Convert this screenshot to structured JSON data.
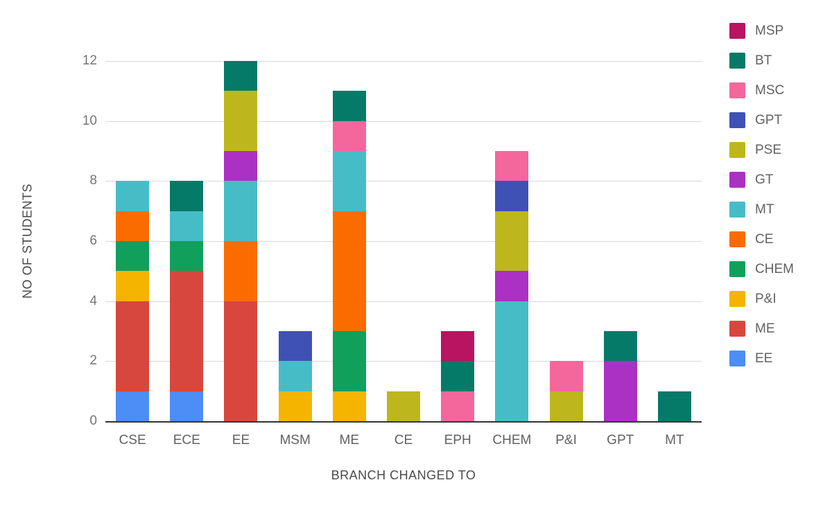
{
  "chart_data": {
    "type": "bar",
    "stacked": true,
    "title": "",
    "xlabel": "BRANCH CHANGED TO",
    "ylabel": "NO OF STUDENTS",
    "categories": [
      "CSE",
      "ECE",
      "EE",
      "MSM",
      "ME",
      "CE",
      "EPH",
      "CHEM",
      "P&I",
      "GPT",
      "MT"
    ],
    "series": [
      {
        "name": "EE",
        "color": "#4c8df6",
        "values": [
          1,
          1,
          0,
          0,
          0,
          0,
          0,
          0,
          0,
          0,
          0
        ]
      },
      {
        "name": "ME",
        "color": "#d8473d",
        "values": [
          3,
          4,
          4,
          0,
          0,
          0,
          0,
          0,
          0,
          0,
          0
        ]
      },
      {
        "name": "P&I",
        "color": "#f4b400",
        "values": [
          1,
          0,
          0,
          1,
          1,
          0,
          0,
          0,
          0,
          0,
          0
        ]
      },
      {
        "name": "CHEM",
        "color": "#10a05c",
        "values": [
          1,
          1,
          0,
          0,
          2,
          0,
          0,
          0,
          0,
          0,
          0
        ]
      },
      {
        "name": "CE",
        "color": "#fa6c00",
        "values": [
          1,
          0,
          2,
          0,
          4,
          0,
          0,
          0,
          0,
          0,
          0
        ]
      },
      {
        "name": "MT",
        "color": "#46bdc6",
        "values": [
          1,
          1,
          2,
          1,
          2,
          0,
          0,
          4,
          0,
          0,
          0
        ]
      },
      {
        "name": "GT",
        "color": "#ab30c4",
        "values": [
          0,
          0,
          1,
          0,
          0,
          0,
          0,
          1,
          0,
          2,
          0
        ]
      },
      {
        "name": "PSE",
        "color": "#bdb71d",
        "values": [
          0,
          0,
          2,
          0,
          0,
          1,
          0,
          2,
          1,
          0,
          0
        ]
      },
      {
        "name": "GPT",
        "color": "#3f51b5",
        "values": [
          0,
          0,
          0,
          1,
          0,
          0,
          0,
          1,
          0,
          0,
          0
        ]
      },
      {
        "name": "MSC",
        "color": "#f4679d",
        "values": [
          0,
          0,
          0,
          0,
          1,
          0,
          1,
          1,
          1,
          0,
          0
        ]
      },
      {
        "name": "BT",
        "color": "#067a68",
        "values": [
          0,
          1,
          1,
          0,
          1,
          0,
          1,
          0,
          0,
          1,
          1
        ]
      },
      {
        "name": "MSP",
        "color": "#b81460",
        "values": [
          0,
          0,
          0,
          0,
          0,
          0,
          1,
          0,
          0,
          0,
          0
        ]
      }
    ],
    "totals": {
      "CSE": 8,
      "ECE": 8,
      "EE": 12,
      "MSM": 3,
      "ME": 11,
      "CE": 1,
      "EPH": 3,
      "CHEM": 9,
      "P&I": 2,
      "GPT": 3,
      "MT": 1
    },
    "yticks": [
      0,
      2,
      4,
      6,
      8,
      10,
      12
    ],
    "ylim": [
      0,
      12
    ],
    "grid": true,
    "legend": {
      "position": "right",
      "order": "reverse_of_stack",
      "labels": [
        "MSP",
        "BT",
        "MSC",
        "GPT",
        "PSE",
        "GT",
        "MT",
        "CE",
        "CHEM",
        "P&I",
        "ME",
        "EE"
      ]
    }
  },
  "colors": {
    "background": "#ffffff",
    "grid": "#d9d9d9",
    "baseline": "#333333",
    "tick_text": "#757575",
    "axis_title_text": "#4a4a4a",
    "legend_text": "#616161"
  }
}
